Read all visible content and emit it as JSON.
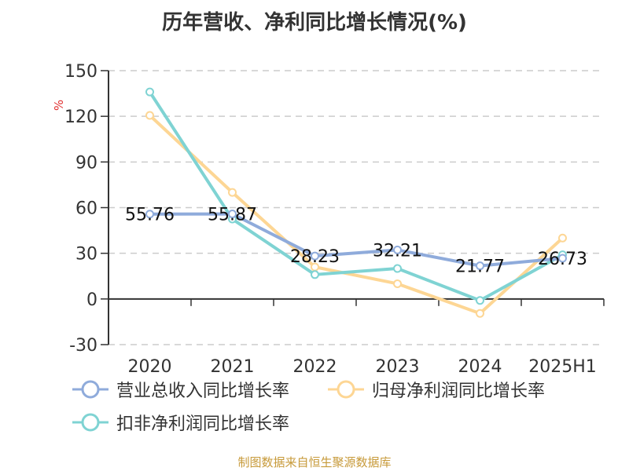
{
  "title": "历年营收、净利同比增长情况(%)",
  "y_unit": "%",
  "source": "制图数据来自恒生聚源数据库",
  "colors": {
    "revenue": "#8fabdb",
    "net_profit": "#fdd694",
    "deducted_profit": "#7fd3d3"
  },
  "legend": [
    {
      "label": "营业总收入同比增长率",
      "color": "#8fabdb"
    },
    {
      "label": "归母净利润同比增长率",
      "color": "#fdd694"
    },
    {
      "label": "扣非净利润同比增长率",
      "color": "#7fd3d3"
    }
  ],
  "chart_data": {
    "type": "line",
    "title": "历年营收、净利同比增长情况(%)",
    "xlabel": "",
    "ylabel": "%",
    "categories": [
      "2020",
      "2021",
      "2022",
      "2023",
      "2024",
      "2025H1"
    ],
    "ylim": [
      -30,
      150
    ],
    "yticks": [
      -30,
      0,
      30,
      60,
      90,
      120,
      150
    ],
    "grid": "dashed horizontal",
    "legend_position": "bottom",
    "series": [
      {
        "name": "营业总收入同比增长率",
        "values": [
          55.76,
          55.87,
          28.23,
          32.21,
          21.77,
          26.73
        ],
        "labels_shown": true
      },
      {
        "name": "归母净利润同比增长率",
        "values": [
          120.6,
          70.0,
          21.0,
          10.0,
          -9.5,
          40.0
        ]
      },
      {
        "name": "扣非净利润同比增长率",
        "values": [
          136.0,
          52.5,
          16.0,
          20.0,
          -1.0,
          29.0
        ]
      }
    ]
  }
}
